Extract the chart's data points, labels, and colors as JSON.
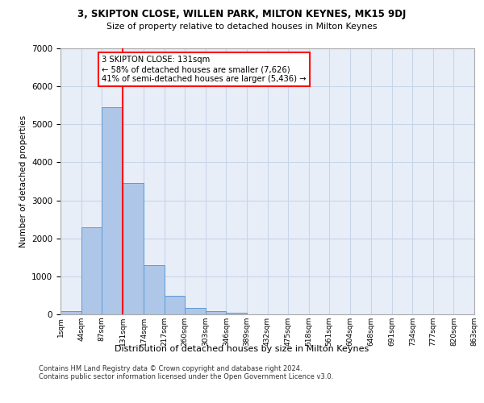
{
  "title_line1": "3, SKIPTON CLOSE, WILLEN PARK, MILTON KEYNES, MK15 9DJ",
  "title_line2": "Size of property relative to detached houses in Milton Keynes",
  "xlabel": "Distribution of detached houses by size in Milton Keynes",
  "ylabel": "Number of detached properties",
  "footnote": "Contains HM Land Registry data © Crown copyright and database right 2024.\nContains public sector information licensed under the Open Government Licence v3.0.",
  "bin_edges": [
    1,
    44,
    87,
    131,
    174,
    217,
    260,
    303,
    346,
    389,
    432,
    475,
    518,
    561,
    604,
    648,
    691,
    734,
    777,
    820,
    863
  ],
  "bar_heights": [
    80,
    2300,
    5450,
    3450,
    1300,
    480,
    170,
    80,
    40,
    10,
    5,
    2,
    1,
    1,
    0,
    0,
    0,
    0,
    0,
    0
  ],
  "bar_color": "#aec6e8",
  "bar_edge_color": "#5b9bd5",
  "grid_color": "#c8d4ea",
  "property_size": 131,
  "vline_color": "red",
  "annotation_text": "3 SKIPTON CLOSE: 131sqm\n← 58% of detached houses are smaller (7,626)\n41% of semi-detached houses are larger (5,436) →",
  "annotation_box_color": "white",
  "annotation_box_edge_color": "red",
  "ylim": [
    0,
    7000
  ],
  "background_color": "#e8eef8",
  "tick_labels": [
    "1sqm",
    "44sqm",
    "87sqm",
    "131sqm",
    "174sqm",
    "217sqm",
    "260sqm",
    "303sqm",
    "346sqm",
    "389sqm",
    "432sqm",
    "475sqm",
    "518sqm",
    "561sqm",
    "604sqm",
    "648sqm",
    "691sqm",
    "734sqm",
    "777sqm",
    "820sqm",
    "863sqm"
  ]
}
